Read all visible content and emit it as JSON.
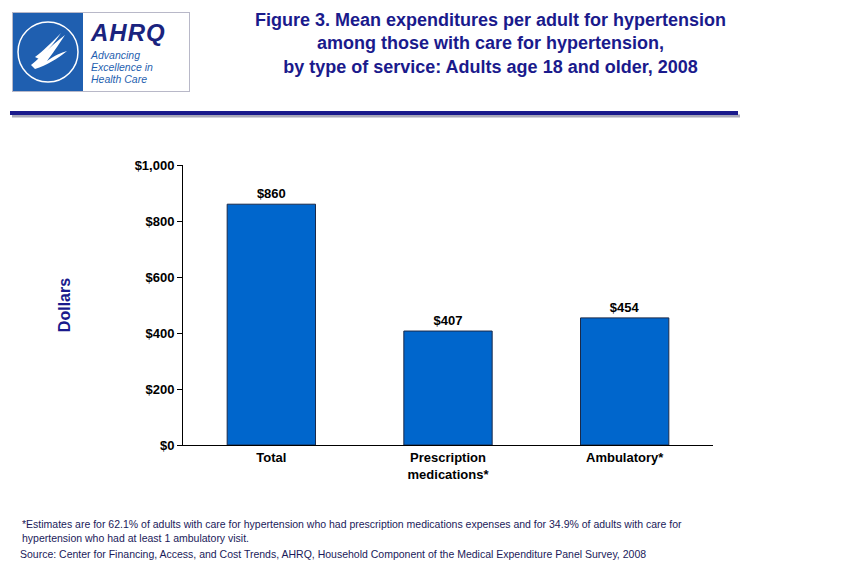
{
  "chart_data": {
    "type": "bar",
    "title": [
      "Figure 3. Mean expenditures per adult for hypertension",
      "among those with care for hypertension,",
      "by type of service: Adults age 18 and older, 2008"
    ],
    "logo": {
      "name": "AHRQ",
      "tagline": [
        "Advancing",
        "Excellence in",
        "Health Care"
      ]
    },
    "categories": [
      "Total",
      "Prescription medications*",
      "Ambulatory*"
    ],
    "values": [
      860,
      407,
      454
    ],
    "value_labels": [
      "$860",
      "$407",
      "$454"
    ],
    "data_labels": true,
    "color": "#0066cc",
    "y_label": "Dollars",
    "ylim": [
      0,
      1000
    ],
    "yticks": [
      {
        "value": 0,
        "label": "$0"
      },
      {
        "value": 200,
        "label": "$200"
      },
      {
        "value": 400,
        "label": "$400"
      },
      {
        "value": 600,
        "label": "$600"
      },
      {
        "value": 800,
        "label": "$800"
      },
      {
        "value": 1000,
        "label": "$1,000"
      }
    ],
    "grid": false,
    "footnote": [
      "*Estimates are for 62.1% of adults with care for hypertension who had prescription medications expenses and for 34.9% of adults with care for",
      "hypertension who had at least 1 ambulatory visit."
    ],
    "source": "Source: Center for Financing, Access, and Cost Trends, AHRQ, Household Component of the Medical Expenditure Panel Survey, 2008"
  }
}
